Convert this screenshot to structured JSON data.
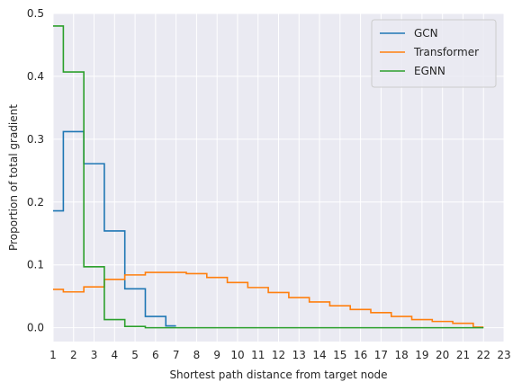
{
  "chart_data": {
    "type": "line",
    "step": "mid",
    "title": "",
    "xlabel": "Shortest path distance from target node",
    "ylabel": "Proportion of total gradient",
    "xlim": [
      1,
      23
    ],
    "ylim": [
      -0.022,
      0.5
    ],
    "xticks": [
      1,
      2,
      3,
      4,
      5,
      6,
      7,
      8,
      9,
      10,
      11,
      12,
      13,
      14,
      15,
      16,
      17,
      18,
      19,
      20,
      21,
      22,
      23
    ],
    "yticks": [
      0.0,
      0.1,
      0.2,
      0.3,
      0.4,
      0.5
    ],
    "ytick_labels": [
      "0.0",
      "0.1",
      "0.2",
      "0.3",
      "0.4",
      "0.5"
    ],
    "grid": true,
    "legend_position": "top-right",
    "series": [
      {
        "name": "GCN",
        "color": "#1f77b4",
        "x": [
          1,
          2,
          3,
          4,
          5,
          6,
          7
        ],
        "values": [
          0.186,
          0.312,
          0.261,
          0.154,
          0.062,
          0.018,
          0.003
        ]
      },
      {
        "name": "Transformer",
        "color": "#ff7f0e",
        "x": [
          1,
          2,
          3,
          4,
          5,
          6,
          7,
          8,
          9,
          10,
          11,
          12,
          13,
          14,
          15,
          16,
          17,
          18,
          19,
          20,
          21,
          22
        ],
        "values": [
          0.061,
          0.057,
          0.065,
          0.077,
          0.084,
          0.088,
          0.088,
          0.086,
          0.08,
          0.072,
          0.064,
          0.056,
          0.048,
          0.041,
          0.035,
          0.029,
          0.024,
          0.018,
          0.013,
          0.01,
          0.007,
          0.001
        ]
      },
      {
        "name": "EGNN",
        "color": "#2ca02c",
        "x": [
          1,
          2,
          3,
          4,
          5,
          6,
          7,
          8,
          9,
          10,
          11,
          12,
          13,
          14,
          15,
          16,
          17,
          18,
          19,
          20,
          21,
          22
        ],
        "values": [
          0.48,
          0.407,
          0.097,
          0.013,
          0.002,
          0.0,
          0.0,
          0.0,
          0.0,
          0.0,
          0.0,
          0.0,
          0.0,
          0.0,
          0.0,
          0.0,
          0.0,
          0.0,
          0.0,
          0.0,
          0.0,
          0.0
        ]
      }
    ]
  }
}
